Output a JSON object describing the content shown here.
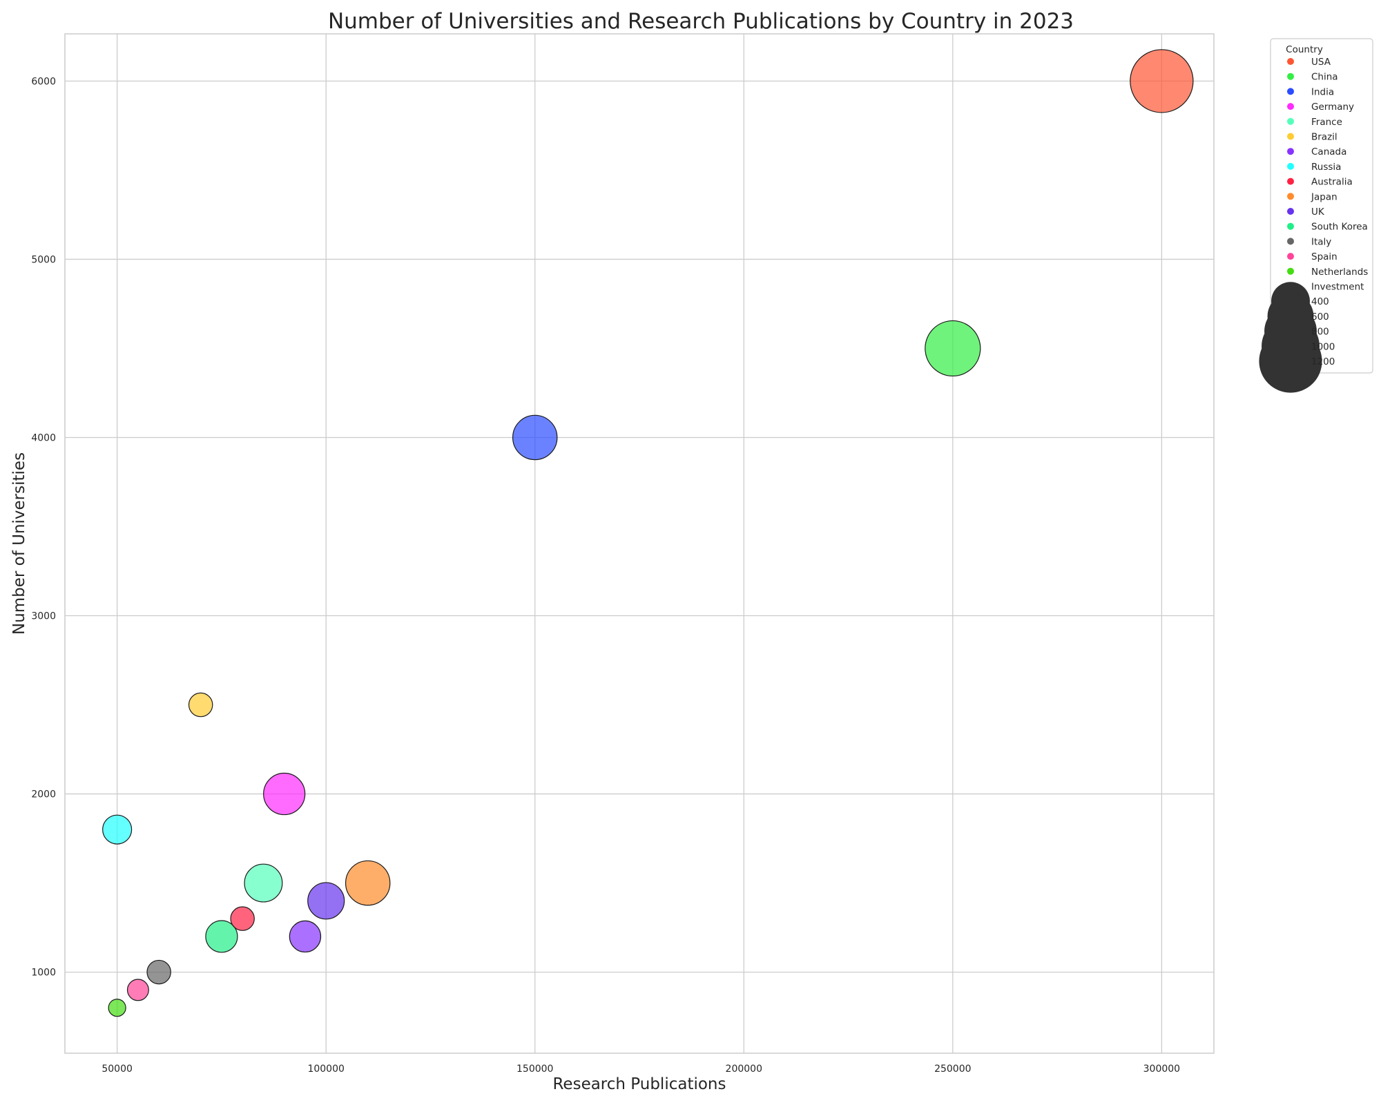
{
  "chart_data": {
    "type": "scatter",
    "title": "Number of Universities and Research Publications by Country in 2023",
    "xlabel": "Research Publications",
    "ylabel": "Number of Universities",
    "xlim": [
      37500,
      312500
    ],
    "ylim": [
      545,
      6265
    ],
    "x_ticks": [
      50000,
      100000,
      150000,
      200000,
      250000,
      300000
    ],
    "y_ticks": [
      1000,
      2000,
      3000,
      4000,
      5000,
      6000
    ],
    "grid": true,
    "size_field": "Investment",
    "legend": {
      "placement": "outside-right-top",
      "country_title": "Country",
      "size_title": "Investment",
      "size_entries": [
        400,
        600,
        800,
        1000,
        1200
      ]
    },
    "points": [
      {
        "country": "USA",
        "x": 300000,
        "y": 6000,
        "size": 1200,
        "color": "#ff5533"
      },
      {
        "country": "China",
        "x": 250000,
        "y": 4500,
        "size": 900,
        "color": "#33ee44"
      },
      {
        "country": "India",
        "x": 150000,
        "y": 4000,
        "size": 550,
        "color": "#2b4dff"
      },
      {
        "country": "Germany",
        "x": 90000,
        "y": 2000,
        "size": 470,
        "color": "#ff2bff"
      },
      {
        "country": "France",
        "x": 85000,
        "y": 1500,
        "size": 380,
        "color": "#55ffbb"
      },
      {
        "country": "Brazil",
        "x": 70000,
        "y": 2500,
        "size": 120,
        "color": "#ffcc33"
      },
      {
        "country": "Canada",
        "x": 95000,
        "y": 1200,
        "size": 240,
        "color": "#8833ff"
      },
      {
        "country": "Russia",
        "x": 50000,
        "y": 1800,
        "size": 200,
        "color": "#22ffff"
      },
      {
        "country": "Australia",
        "x": 80000,
        "y": 1300,
        "size": 120,
        "color": "#ff2244"
      },
      {
        "country": "Japan",
        "x": 110000,
        "y": 1500,
        "size": 550,
        "color": "#ff8c2b"
      },
      {
        "country": "UK",
        "x": 100000,
        "y": 1400,
        "size": 350,
        "color": "#6633ee"
      },
      {
        "country": "South Korea",
        "x": 75000,
        "y": 1200,
        "size": 250,
        "color": "#22ee88"
      },
      {
        "country": "Italy",
        "x": 60000,
        "y": 1000,
        "size": 120,
        "color": "#666666"
      },
      {
        "country": "Spain",
        "x": 55000,
        "y": 900,
        "size": 90,
        "color": "#ff4499"
      },
      {
        "country": "Netherlands",
        "x": 50000,
        "y": 800,
        "size": 50,
        "color": "#44dd11"
      }
    ]
  }
}
